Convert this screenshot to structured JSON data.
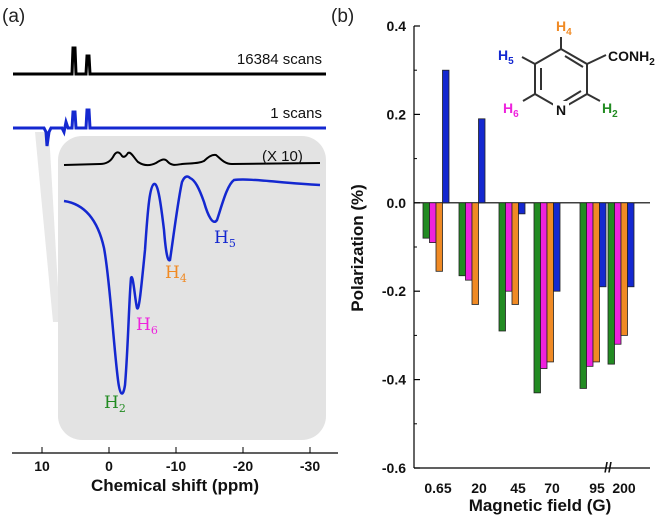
{
  "colors": {
    "H2": "#228b22",
    "H4": "#f08a24",
    "H5": "#1428d0",
    "H6": "#ee22dd",
    "ring": "#333333",
    "inset_bg": "#e3e3e3",
    "spectrum_blue": "#1428d0",
    "spectrum_black": "#000000"
  },
  "panel_a": {
    "label": "(a)",
    "xlabel": "Chemical shift (ppm)",
    "ticks": [
      "10",
      "0",
      "-10",
      "-20",
      "-30"
    ],
    "spectrum_labels": {
      "top": "16384 scans",
      "middle": "1 scans",
      "inset_scale": "(X 10)"
    },
    "peaks": [
      {
        "key": "H2",
        "label": "H",
        "sub": "2"
      },
      {
        "key": "H6",
        "label": "H",
        "sub": "6"
      },
      {
        "key": "H4",
        "label": "H",
        "sub": "4"
      },
      {
        "key": "H5",
        "label": "H",
        "sub": "5"
      }
    ]
  },
  "panel_b": {
    "label": "(b)",
    "structure": {
      "substituent": "CONH",
      "substituent_sub": "2",
      "ring_atom": "N",
      "labels": [
        {
          "key": "H4",
          "text": "H",
          "sub": "4"
        },
        {
          "key": "H5",
          "text": "H",
          "sub": "5"
        },
        {
          "key": "H6",
          "text": "H",
          "sub": "6"
        },
        {
          "key": "H2",
          "text": "H",
          "sub": "2"
        }
      ]
    }
  },
  "chart_data": {
    "type": "bar",
    "title": "",
    "xlabel": "Magnetic field (G)",
    "ylabel": "Polarization (%)",
    "ylim": [
      -0.6,
      0.4
    ],
    "yticks": [
      0.4,
      0.2,
      0.0,
      -0.2,
      -0.4,
      -0.6
    ],
    "ytick_labels": [
      "0.4",
      "0.2",
      "0.0",
      "-0.2",
      "-0.4",
      "-0.6"
    ],
    "categories": [
      "0.65",
      "20",
      "45",
      "70",
      "95",
      "200"
    ],
    "axis_break": "//",
    "series": [
      {
        "name": "H2",
        "values": [
          -0.08,
          -0.165,
          -0.29,
          -0.43,
          -0.42,
          -0.365
        ]
      },
      {
        "name": "H6",
        "values": [
          -0.09,
          -0.175,
          -0.2,
          -0.375,
          -0.37,
          -0.32
        ]
      },
      {
        "name": "H4",
        "values": [
          -0.155,
          -0.23,
          -0.23,
          -0.36,
          -0.36,
          -0.3
        ]
      },
      {
        "name": "H5",
        "values": [
          0.3,
          0.19,
          -0.025,
          -0.2,
          -0.19,
          -0.19
        ]
      }
    ]
  }
}
